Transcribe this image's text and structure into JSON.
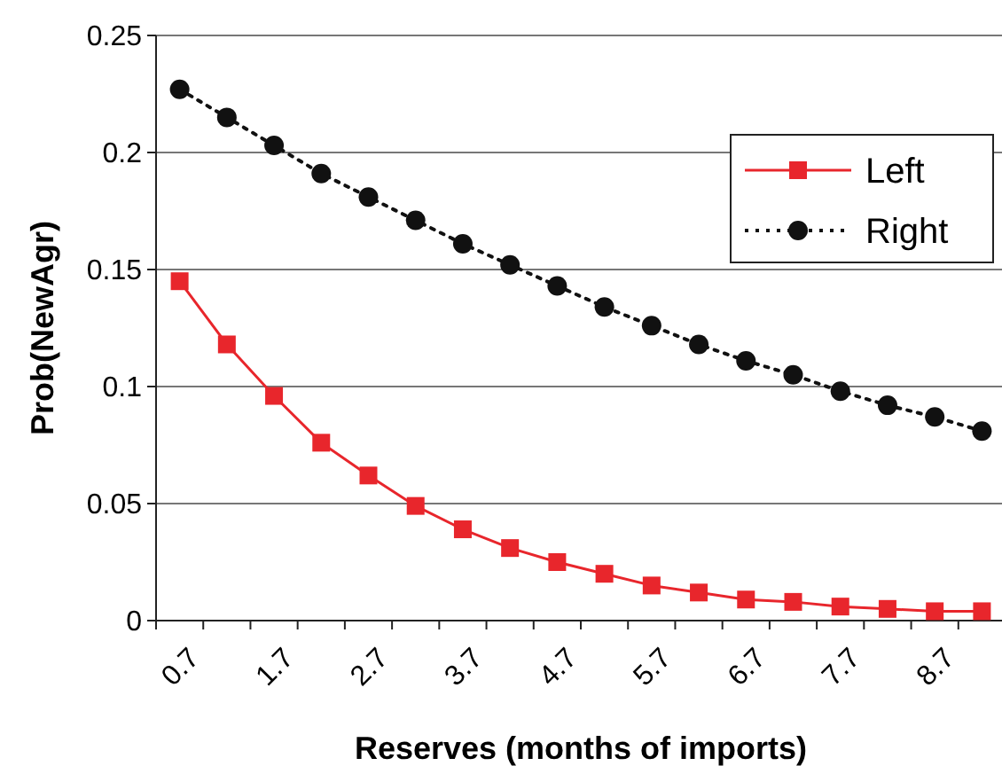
{
  "chart_data": {
    "type": "line",
    "xlabel": "Reserves (months of imports)",
    "ylabel": "Prob(NewAgr)",
    "categories": [
      "0.7",
      null,
      "1.7",
      null,
      "2.7",
      null,
      "3.7",
      null,
      "4.7",
      null,
      "5.7",
      null,
      "6.7",
      null,
      "7.7",
      null,
      "8.7",
      null
    ],
    "series": [
      {
        "name": "Left",
        "color": "#e8262c",
        "marker": "square",
        "line_style": "solid",
        "values": [
          0.145,
          0.118,
          0.096,
          0.076,
          0.062,
          0.049,
          0.039,
          0.031,
          0.025,
          0.02,
          0.015,
          0.012,
          0.009,
          0.008,
          0.006,
          0.005,
          0.004,
          0.004
        ]
      },
      {
        "name": "Right",
        "color": "#111111",
        "marker": "circle",
        "line_style": "dotted",
        "values": [
          0.227,
          0.215,
          0.203,
          0.191,
          0.181,
          0.171,
          0.161,
          0.152,
          0.143,
          0.134,
          0.126,
          0.118,
          0.111,
          0.105,
          0.098,
          0.092,
          0.087,
          0.081
        ]
      }
    ],
    "ylim": [
      0,
      0.25
    ],
    "yticks": [
      0,
      0.05,
      0.1,
      0.15,
      0.2,
      0.25
    ],
    "grid": "y",
    "legend": "right"
  }
}
